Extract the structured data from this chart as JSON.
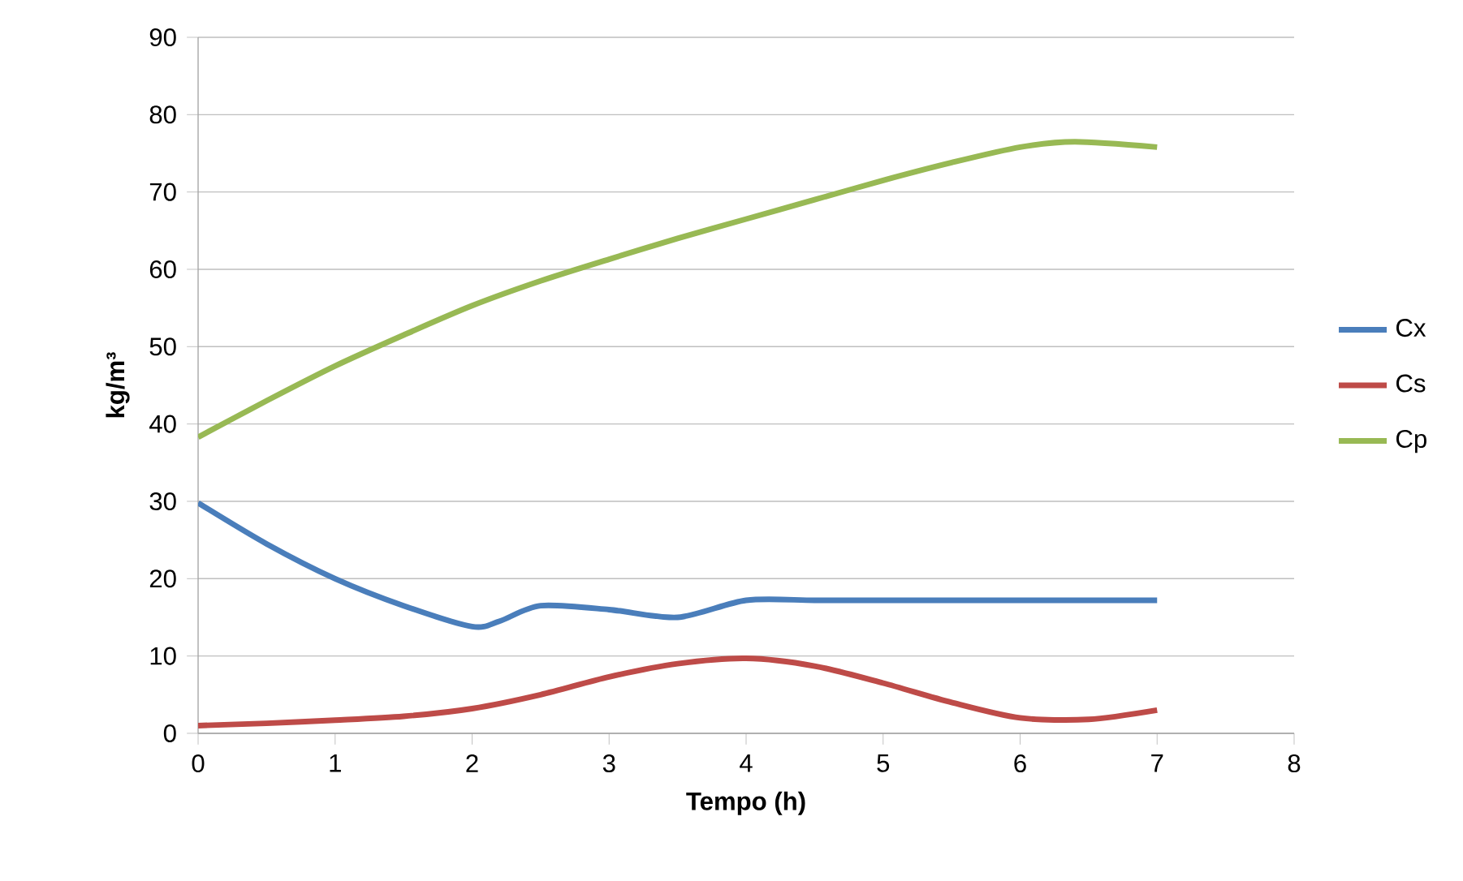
{
  "chart_data": {
    "type": "line",
    "xlabel": "Tempo (h)",
    "ylabel": "kg/m³",
    "xlim": [
      0,
      8
    ],
    "xticks": [
      0,
      1,
      2,
      3,
      4,
      5,
      6,
      7,
      8
    ],
    "ylim": [
      0,
      90
    ],
    "yticks": [
      0,
      10,
      20,
      30,
      40,
      50,
      60,
      70,
      80,
      90
    ],
    "grid": "y",
    "legend": "right",
    "marker": "none",
    "line_style": "solid",
    "series": [
      {
        "name": "Cx",
        "color": "#4a7ebb",
        "x": [
          0,
          0.5,
          1,
          1.5,
          2,
          2.2,
          2.5,
          3,
          3.5,
          4,
          4.5,
          5,
          6,
          7
        ],
        "values": [
          29.8,
          24.5,
          20,
          16.5,
          13.8,
          14.5,
          16.5,
          16,
          15,
          17.2,
          17.2,
          17.2,
          17.2,
          17.2
        ]
      },
      {
        "name": "Cs",
        "color": "#be4b48",
        "x": [
          0,
          0.5,
          1,
          1.5,
          2,
          2.5,
          3,
          3.5,
          4,
          4.5,
          5,
          5.5,
          6,
          6.5,
          7
        ],
        "values": [
          1,
          1.3,
          1.7,
          2.2,
          3.2,
          5,
          7.3,
          9,
          9.7,
          8.7,
          6.5,
          4,
          2,
          1.8,
          3
        ]
      },
      {
        "name": "Cp",
        "color": "#98b954",
        "x": [
          0,
          0.5,
          1,
          1.5,
          2,
          2.5,
          3,
          3.5,
          4,
          4.5,
          5,
          5.5,
          6,
          6.4,
          7
        ],
        "values": [
          38.3,
          43,
          47.5,
          51.5,
          55.3,
          58.5,
          61.3,
          64,
          66.5,
          69,
          71.5,
          73.8,
          75.8,
          76.5,
          75.8
        ]
      }
    ]
  }
}
